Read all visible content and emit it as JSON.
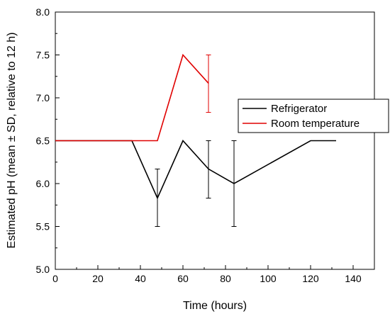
{
  "chart_data": {
    "type": "line",
    "title": "",
    "xlabel": "Time (hours)",
    "ylabel": "Estimated pH (mean ± SD, relative to 12 h)",
    "xlim": [
      0,
      150
    ],
    "ylim": [
      5.0,
      8.0
    ],
    "xticks": [
      0,
      20,
      40,
      60,
      80,
      100,
      120,
      140
    ],
    "yticks": [
      5.0,
      5.5,
      6.0,
      6.5,
      7.0,
      7.5,
      8.0
    ],
    "xtick_labels": [
      "0",
      "20",
      "40",
      "60",
      "80",
      "100",
      "120",
      "140"
    ],
    "ytick_labels": [
      "5.0",
      "5.5",
      "6.0",
      "6.5",
      "7.0",
      "7.5",
      "8.0"
    ],
    "grid": false,
    "legend_position": "right",
    "series": [
      {
        "name": "Refrigerator",
        "color": "#000000",
        "x": [
          0,
          36,
          48,
          60,
          72,
          84,
          120,
          132
        ],
        "y": [
          6.5,
          6.5,
          5.83,
          6.5,
          6.17,
          6.0,
          6.5,
          6.5
        ],
        "error_bars": [
          {
            "x": 48,
            "low": 5.5,
            "high": 6.17
          },
          {
            "x": 72,
            "low": 5.83,
            "high": 6.5
          },
          {
            "x": 84,
            "low": 5.5,
            "high": 6.5
          }
        ]
      },
      {
        "name": "Room temperature",
        "color": "#e00000",
        "x": [
          0,
          48,
          60,
          72
        ],
        "y": [
          6.5,
          6.5,
          7.5,
          7.17
        ],
        "error_bars": [
          {
            "x": 72,
            "low": 6.83,
            "high": 7.5
          }
        ]
      }
    ]
  }
}
